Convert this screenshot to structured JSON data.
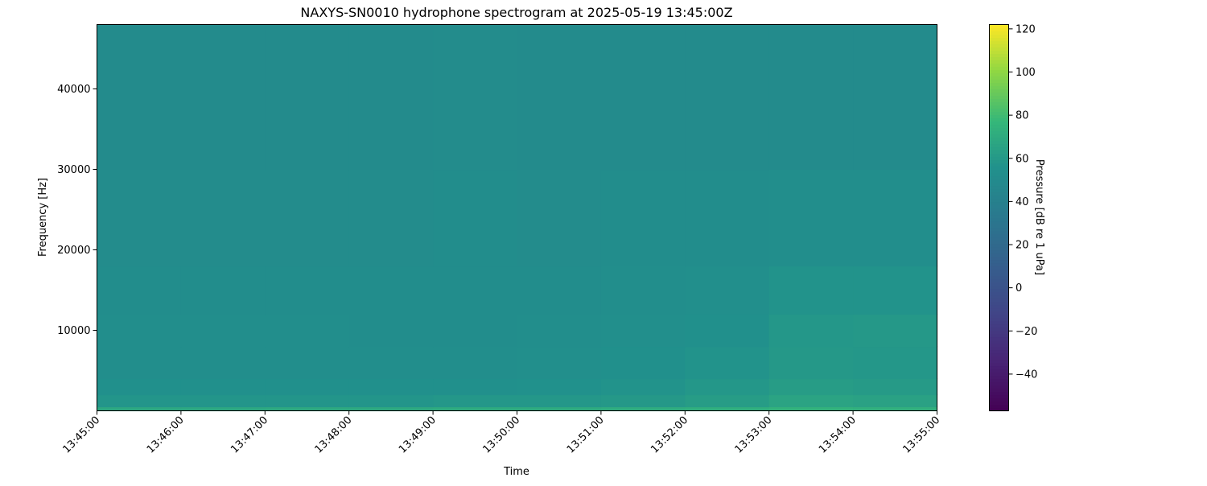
{
  "chart_data": {
    "type": "heatmap",
    "title": "NAXYS-SN0010 hydrophone spectrogram at 2025-05-19 13:45:00Z",
    "xlabel": "Time",
    "ylabel": "Frequency [Hz]",
    "colorbar_label": "Pressure [dB re 1 uPa]",
    "colormap": "viridis",
    "color_range": [
      -57,
      122
    ],
    "colorbar_ticks": [
      "120",
      "100",
      "80",
      "60",
      "40",
      "20",
      "0",
      "−20",
      "−40"
    ],
    "colorbar_tick_values": [
      120,
      100,
      80,
      60,
      40,
      20,
      0,
      -20,
      -40
    ],
    "xlim": [
      "13:45:00",
      "13:55:00"
    ],
    "x_ticks": [
      "13:45:00",
      "13:46:00",
      "13:47:00",
      "13:48:00",
      "13:49:00",
      "13:50:00",
      "13:51:00",
      "13:52:00",
      "13:53:00",
      "13:54:00",
      "13:55:00"
    ],
    "ylim": [
      0,
      48000
    ],
    "y_ticks": [
      "10000",
      "20000",
      "30000",
      "40000"
    ],
    "y_tick_values": [
      10000,
      20000,
      30000,
      40000
    ],
    "time_bins": [
      "13:45",
      "13:46",
      "13:47",
      "13:48",
      "13:49",
      "13:50",
      "13:51",
      "13:52",
      "13:53",
      "13:54"
    ],
    "freq_bin_edges": [
      0,
      500,
      2000,
      4000,
      8000,
      12000,
      18000,
      30000,
      48000
    ],
    "values_db": [
      [
        68,
        68,
        69,
        69,
        70,
        70,
        71,
        72,
        74,
        73
      ],
      [
        58,
        58,
        58,
        58,
        59,
        59,
        60,
        62,
        66,
        65
      ],
      [
        55,
        55,
        55,
        55,
        55,
        56,
        57,
        59,
        62,
        61
      ],
      [
        53,
        53,
        53,
        53,
        53,
        54,
        55,
        57,
        60,
        59
      ],
      [
        53,
        53,
        53,
        52,
        52,
        53,
        54,
        55,
        59,
        60
      ],
      [
        52,
        52,
        52,
        52,
        52,
        52,
        53,
        54,
        57,
        57
      ],
      [
        51,
        51,
        51,
        51,
        52,
        51,
        52,
        52,
        53,
        53
      ],
      [
        50,
        50,
        50,
        50,
        51,
        50,
        50,
        50,
        50,
        50
      ]
    ],
    "grid": false
  }
}
